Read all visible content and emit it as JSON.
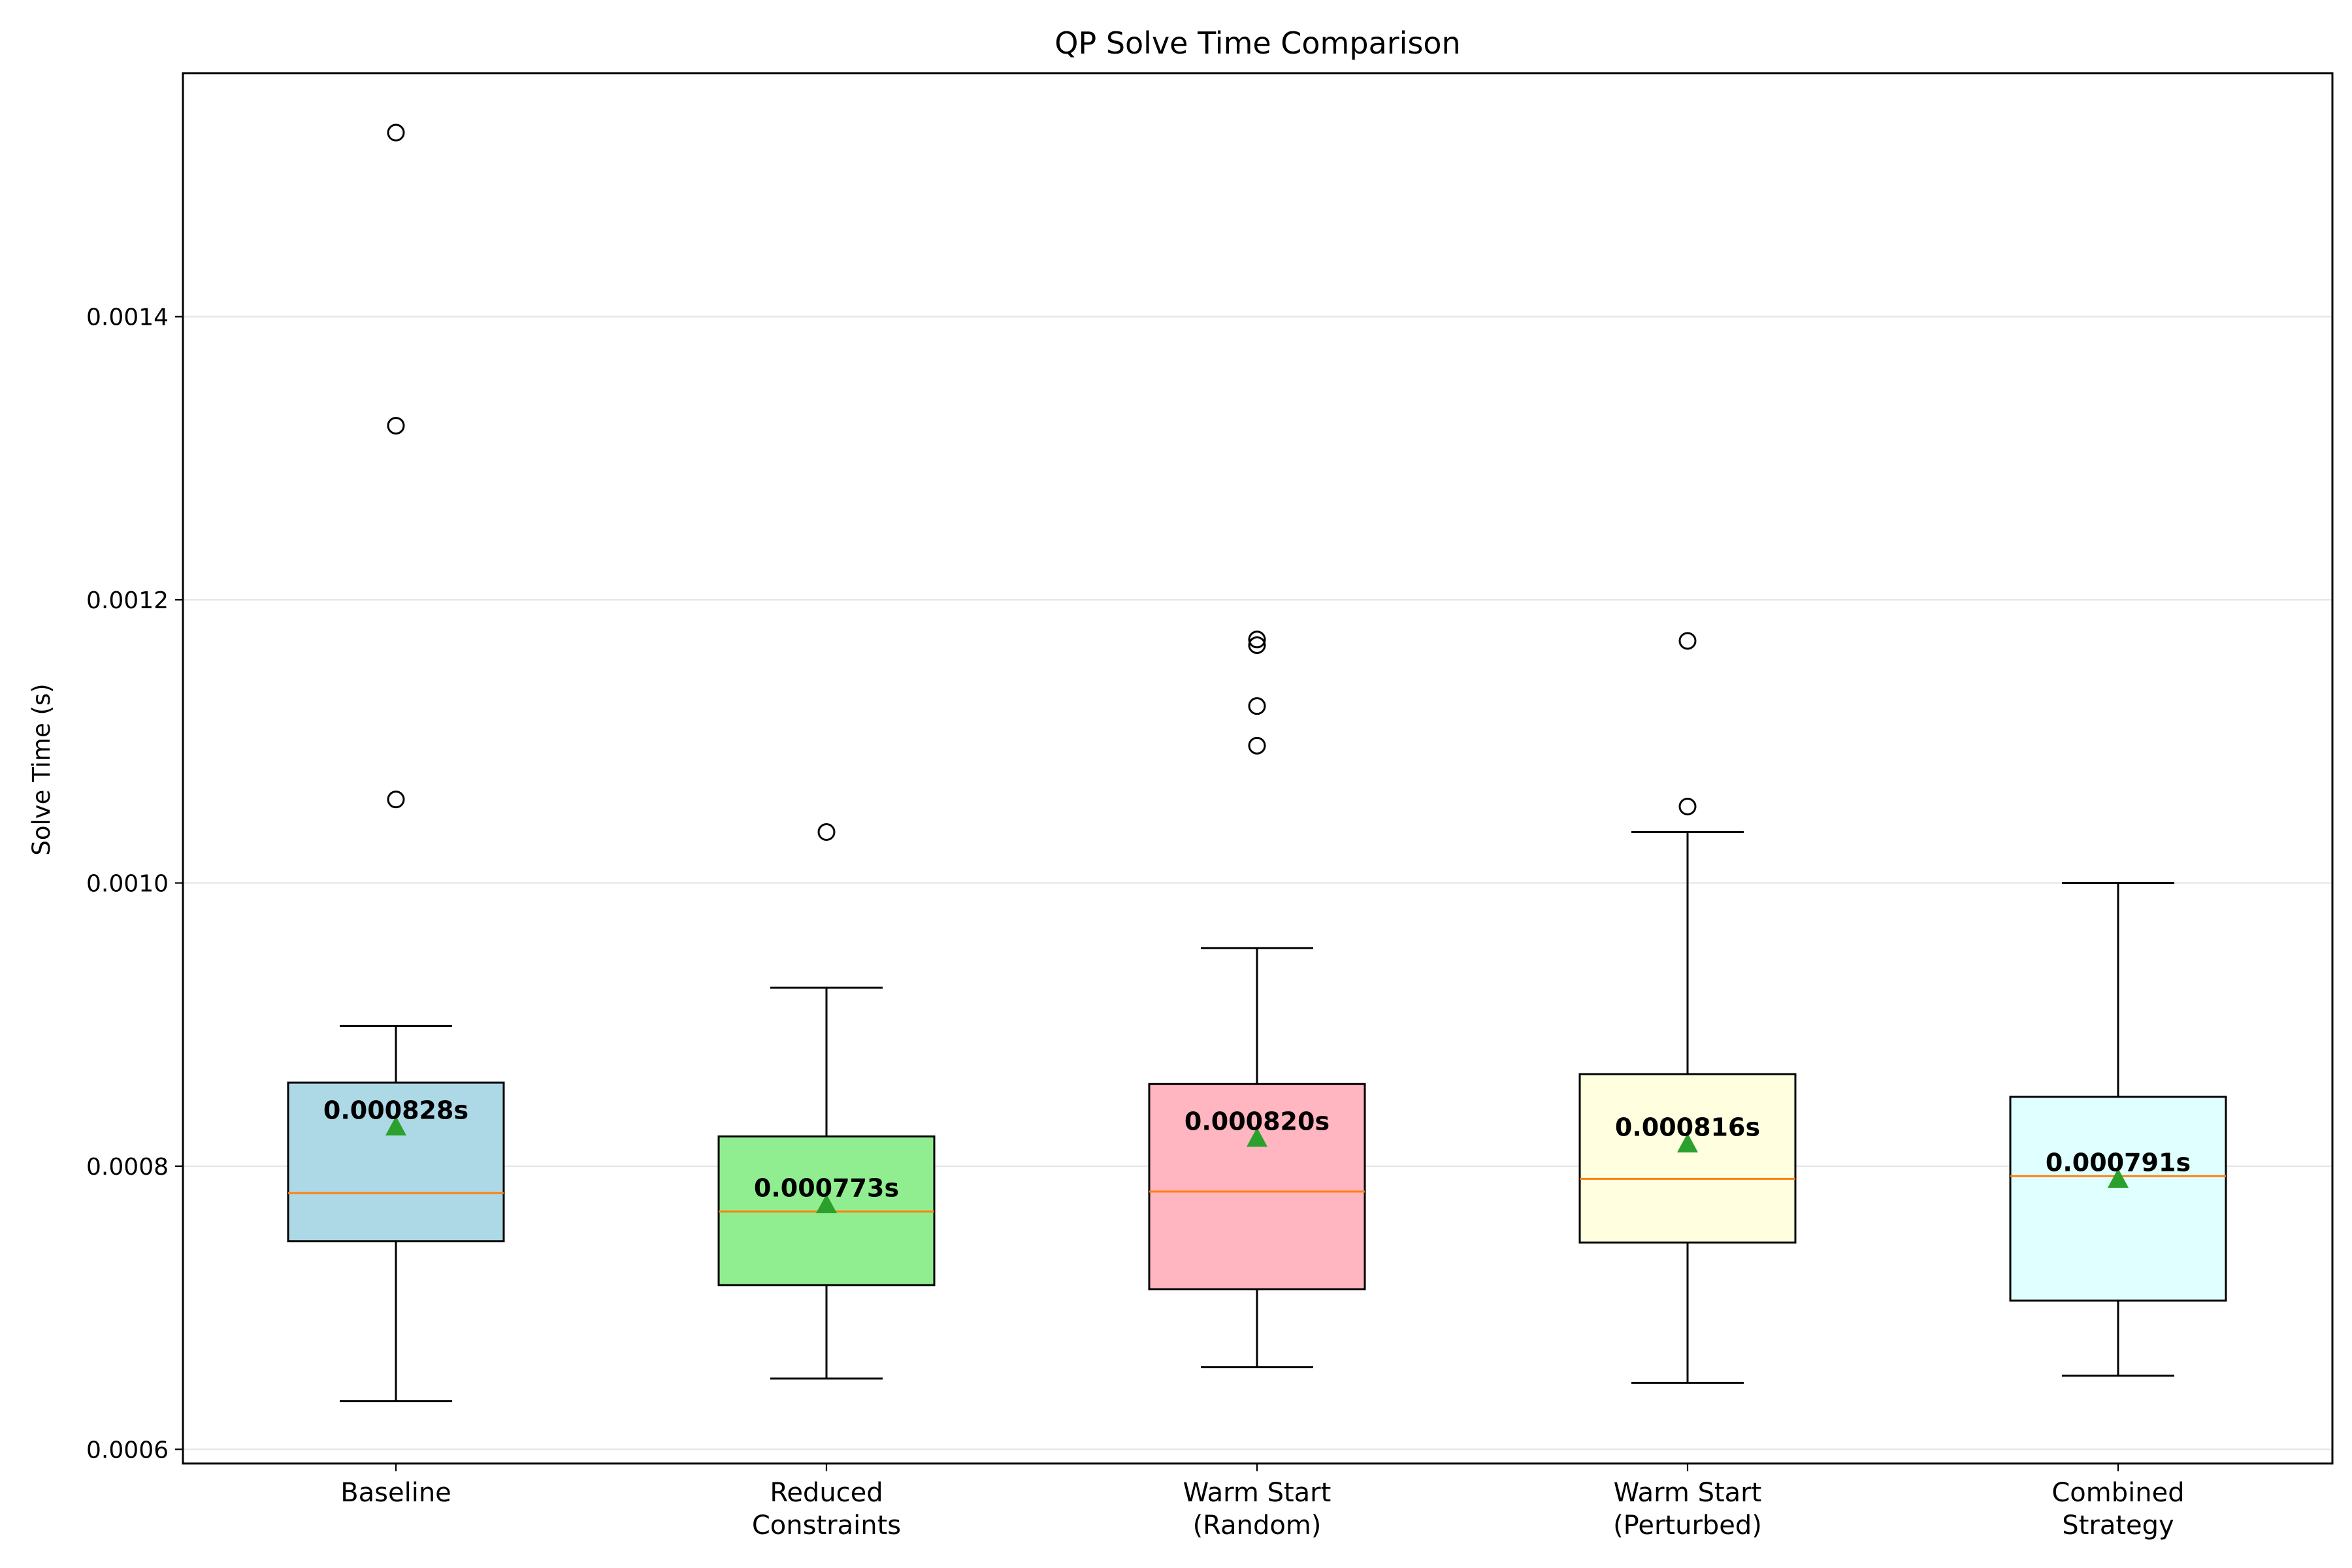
{
  "chart_data": {
    "type": "box",
    "title": "QP Solve Time Comparison",
    "xlabel": "",
    "ylabel": "Solve Time (s)",
    "ylim": [
      0.00059,
      0.001572
    ],
    "yticks": [
      "0.0006",
      "0.0008",
      "0.0010",
      "0.0012",
      "0.0014"
    ],
    "ytick_values": [
      0.0006,
      0.0008,
      0.001,
      0.0012,
      0.0014
    ],
    "grid": "horizontal",
    "median_color": "#ff7f0e",
    "mean_marker_color": "#2ca02c",
    "categories": [
      {
        "label_lines": [
          "Baseline"
        ],
        "color": "#add8e6",
        "whisker_low": 0.000634,
        "q1": 0.000747,
        "median": 0.000781,
        "q3": 0.000859,
        "whisker_high": 0.000899,
        "mean": 0.000828,
        "mean_label": "0.000828s",
        "outliers": [
          0.00153,
          0.001323,
          0.001059
        ]
      },
      {
        "label_lines": [
          "Reduced",
          "Constraints"
        ],
        "color": "#90ee90",
        "whisker_low": 0.00065,
        "q1": 0.000716,
        "median": 0.000768,
        "q3": 0.000821,
        "whisker_high": 0.000926,
        "mean": 0.000773,
        "mean_label": "0.000773s",
        "outliers": [
          0.001036
        ]
      },
      {
        "label_lines": [
          "Warm Start",
          "(Random)"
        ],
        "color": "#ffb6c1",
        "whisker_low": 0.000658,
        "q1": 0.000713,
        "median": 0.000782,
        "q3": 0.000858,
        "whisker_high": 0.000954,
        "mean": 0.00082,
        "mean_label": "0.000820s",
        "outliers": [
          0.001172,
          0.001168,
          0.001125,
          0.001097
        ]
      },
      {
        "label_lines": [
          "Warm Start",
          "(Perturbed)"
        ],
        "color": "#ffffe0",
        "whisker_low": 0.000647,
        "q1": 0.000746,
        "median": 0.000791,
        "q3": 0.000865,
        "whisker_high": 0.001036,
        "mean": 0.000816,
        "mean_label": "0.000816s",
        "outliers": [
          0.001171,
          0.001054
        ]
      },
      {
        "label_lines": [
          "Combined",
          "Strategy"
        ],
        "color": "#e0ffff",
        "whisker_low": 0.000652,
        "q1": 0.000705,
        "median": 0.000793,
        "q3": 0.000849,
        "whisker_high": 0.001,
        "mean": 0.000791,
        "mean_label": "0.000791s",
        "outliers": []
      }
    ]
  }
}
